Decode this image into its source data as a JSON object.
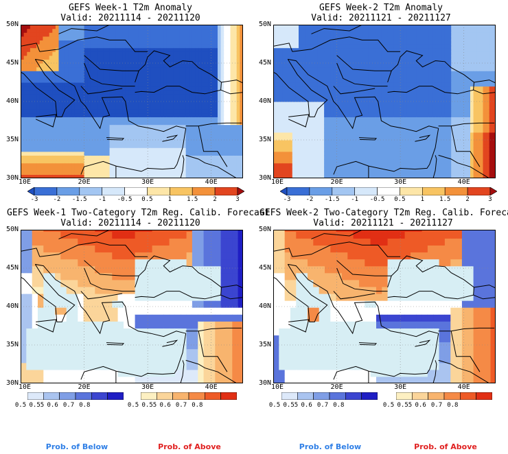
{
  "panels": [
    {
      "title1": "GEFS Week-1 T2m Anomaly",
      "title2": "Valid: 20211114 - 20211120"
    },
    {
      "title1": "GEFS Week-2 T2m Anomaly",
      "title2": "Valid: 20211121 - 20211127"
    },
    {
      "title1": "GEFS Week-1 Two-Category T2m Reg. Calib. Forecast",
      "title2": "Valid: 20211114 - 20211120"
    },
    {
      "title1": "GEFS Week-2 Two-Category T2m Reg. Calib. Forecast",
      "title2": "Valid: 20211121 - 20211127"
    }
  ],
  "axes": {
    "lat_labels": [
      "50N",
      "45N",
      "40N",
      "35N",
      "30N"
    ],
    "lon_labels": [
      "10E",
      "20E",
      "30E",
      "40E"
    ]
  },
  "anomaly_colorbar": {
    "labels": [
      "-3",
      "-2",
      "-1.5",
      "-1",
      "-0.5",
      "0.5",
      "1",
      "1.5",
      "2",
      "3"
    ],
    "colors": [
      "#1f4fc0",
      "#3a6fd6",
      "#6a9ee6",
      "#a3c6f2",
      "#d6e8fa",
      "#ffffff",
      "#fde6a8",
      "#f8c462",
      "#f3913a",
      "#e2451f",
      "#a50e0e"
    ]
  },
  "prob_below_colorbar": {
    "labels": [
      "0.5",
      "0.55",
      "0.6",
      "0.7",
      "0.8"
    ],
    "colors": [
      "#dde9fa",
      "#aac4f0",
      "#7f9ee6",
      "#5a74dc",
      "#3b45d0",
      "#1f1ec4"
    ]
  },
  "prob_above_colorbar": {
    "labels": [
      "0.5",
      "0.55",
      "0.6",
      "0.7",
      "0.8"
    ],
    "colors": [
      "#fdf0c2",
      "#fbd59a",
      "#f8b46e",
      "#f58a46",
      "#ee5a26",
      "#e12f14"
    ]
  },
  "legend": {
    "below": "Prob. of Below",
    "above": "Prob. of Above",
    "below_color": "#2f7fe6",
    "above_color": "#e02020"
  },
  "colors": {
    "sea": "#d7eef4",
    "coast": "#000000"
  }
}
